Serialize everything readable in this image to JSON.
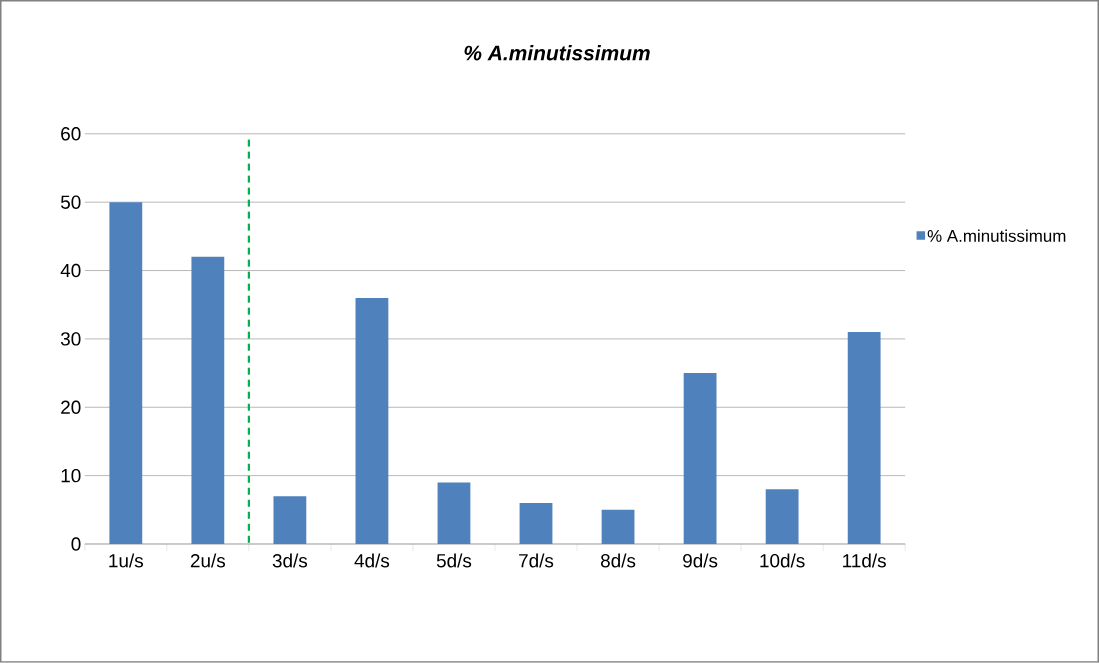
{
  "chart_data": {
    "type": "bar",
    "title": "% A.minutissimum",
    "categories": [
      "1u/s",
      "2u/s",
      "3d/s",
      "4d/s",
      "5d/s",
      "7d/s",
      "8d/s",
      "9d/s",
      "10d/s",
      "11d/s"
    ],
    "series": [
      {
        "name": "% A.minutissimum",
        "color": "#4f81bd",
        "values": [
          50,
          42,
          7,
          36,
          9,
          6,
          5,
          25,
          8,
          31
        ]
      }
    ],
    "ylim": [
      0,
      60
    ],
    "yticks": [
      0,
      10,
      20,
      30,
      40,
      50,
      60
    ],
    "grid": "y",
    "legend": "right"
  }
}
